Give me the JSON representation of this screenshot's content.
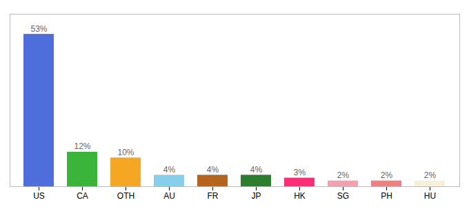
{
  "chart_data": {
    "type": "bar",
    "categories": [
      "US",
      "CA",
      "OTH",
      "AU",
      "FR",
      "JP",
      "HK",
      "SG",
      "PH",
      "HU"
    ],
    "values": [
      53,
      12,
      10,
      4,
      4,
      4,
      3,
      2,
      2,
      2
    ],
    "value_labels": [
      "53%",
      "12%",
      "10%",
      "4%",
      "4%",
      "4%",
      "3%",
      "2%",
      "2%",
      "2%"
    ],
    "colors": [
      "#4d6edb",
      "#3ab53a",
      "#f5a623",
      "#87ceeb",
      "#b5651d",
      "#2e7d2e",
      "#ff2d78",
      "#f4a0b0",
      "#f08080",
      "#f5f0dc"
    ],
    "ylim": [
      0,
      60
    ],
    "grid": false,
    "data_labels": true,
    "tick_labels": "x"
  }
}
